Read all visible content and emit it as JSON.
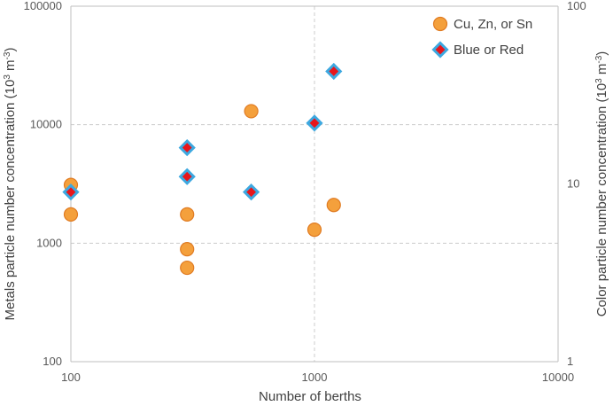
{
  "chart_data": {
    "type": "scatter",
    "title": "",
    "xlabel": "Number of berths",
    "ylabel_left": "Metals particle number concentration (10",
    "ylabel_left_sup": "3",
    "ylabel_left_unit": " m",
    "ylabel_left_unit_sup": "-3",
    "ylabel_left_close": ")",
    "ylabel_right": "Color particle number concentration (10",
    "ylabel_right_sup": "3",
    "ylabel_right_unit": " m",
    "ylabel_right_unit_sup": "-3",
    "ylabel_right_close": ")",
    "x_scale": "log",
    "xlim": [
      100,
      10000
    ],
    "ylim_left": [
      100,
      100000
    ],
    "ylim_right": [
      1,
      100
    ],
    "x_ticks": [
      "100",
      "1000",
      "10000"
    ],
    "y_left_ticks": [
      "100",
      "1000",
      "10000",
      "100000"
    ],
    "y_right_ticks": [
      "1",
      "10",
      "100"
    ],
    "legend_position": "top-right",
    "series": [
      {
        "name": "Cu, Zn, or Sn",
        "axis": "left",
        "marker": "circle",
        "color": "#F4A03C",
        "edge_color": "#E07B22",
        "points": [
          {
            "x": 100,
            "y": 3100
          },
          {
            "x": 100,
            "y": 1750
          },
          {
            "x": 300,
            "y": 1750
          },
          {
            "x": 300,
            "y": 890
          },
          {
            "x": 300,
            "y": 620
          },
          {
            "x": 550,
            "y": 13000
          },
          {
            "x": 1000,
            "y": 1300
          },
          {
            "x": 1200,
            "y": 2100
          }
        ]
      },
      {
        "name": "Blue or Red",
        "axis": "right",
        "marker": "diamond",
        "color": "#E8151B",
        "edge_color": "#3DA8E0",
        "points": [
          {
            "x": 100,
            "y": 9
          },
          {
            "x": 300,
            "y": 16
          },
          {
            "x": 300,
            "y": 11
          },
          {
            "x": 550,
            "y": 9
          },
          {
            "x": 1000,
            "y": 22
          },
          {
            "x": 1200,
            "y": 43
          }
        ]
      }
    ]
  }
}
